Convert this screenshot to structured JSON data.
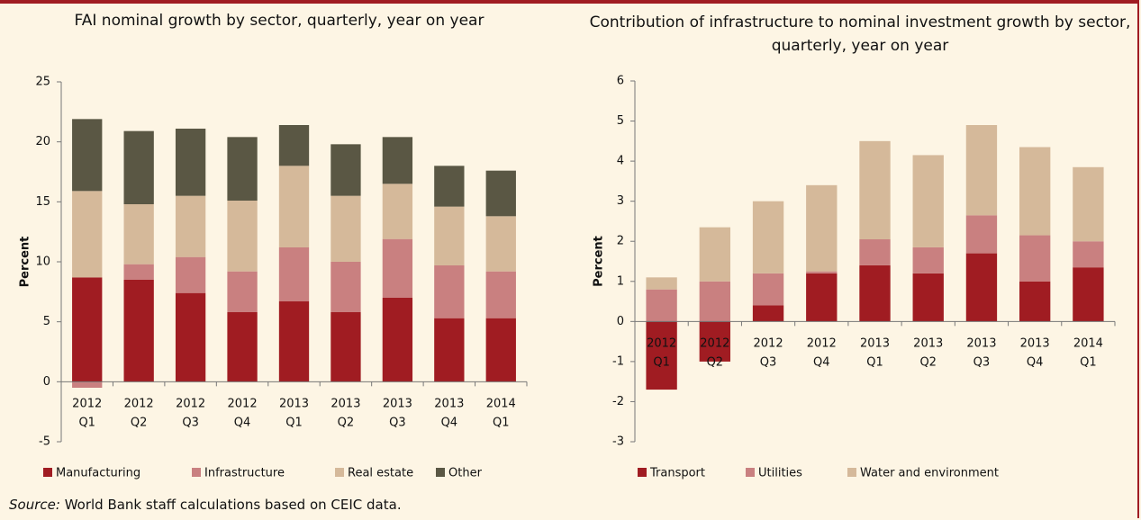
{
  "chart_data": [
    {
      "type": "bar",
      "stacked": true,
      "title": "FAI nominal growth by sector, quarterly, year on year",
      "ylabel": "Percent",
      "categories": [
        [
          "2012",
          "Q1"
        ],
        [
          "2012",
          "Q2"
        ],
        [
          "2012",
          "Q3"
        ],
        [
          "2012",
          "Q4"
        ],
        [
          "2013",
          "Q1"
        ],
        [
          "2013",
          "Q2"
        ],
        [
          "2013",
          "Q3"
        ],
        [
          "2013",
          "Q4"
        ],
        [
          "2014",
          "Q1"
        ]
      ],
      "series": [
        {
          "name": "Manufacturing",
          "color": "#a01c22",
          "values": [
            8.7,
            8.5,
            7.4,
            5.8,
            6.7,
            5.8,
            7.0,
            5.3,
            5.3
          ]
        },
        {
          "name": "Infrastructure",
          "color": "#c98080",
          "values": [
            -0.5,
            1.3,
            3.0,
            3.4,
            4.5,
            4.2,
            4.9,
            4.4,
            3.9
          ]
        },
        {
          "name": "Real estate",
          "color": "#d5b99a",
          "values": [
            7.2,
            5.0,
            5.1,
            5.9,
            6.8,
            5.5,
            4.6,
            4.9,
            4.6
          ]
        },
        {
          "name": "Other",
          "color": "#5a5744",
          "values": [
            6.0,
            6.1,
            5.6,
            5.3,
            3.4,
            4.3,
            3.9,
            3.4,
            3.8
          ]
        }
      ],
      "ylim": [
        -5,
        25
      ],
      "yticks": [
        -5,
        0,
        5,
        10,
        15,
        20,
        25
      ],
      "legend": "bottom"
    },
    {
      "type": "bar",
      "stacked": true,
      "title": "Contribution of infrastructure to nominal investment growth by sector, quarterly, year on year",
      "ylabel": "Percent",
      "categories": [
        [
          "2012",
          "Q1"
        ],
        [
          "2012",
          "Q2"
        ],
        [
          "2012",
          "Q3"
        ],
        [
          "2012",
          "Q4"
        ],
        [
          "2013",
          "Q1"
        ],
        [
          "2013",
          "Q2"
        ],
        [
          "2013",
          "Q3"
        ],
        [
          "2013",
          "Q4"
        ],
        [
          "2014",
          "Q1"
        ]
      ],
      "series": [
        {
          "name": "Transport",
          "color": "#a01c22",
          "values": [
            -1.7,
            -1.0,
            0.4,
            1.2,
            1.4,
            1.2,
            1.7,
            1.0,
            1.35
          ]
        },
        {
          "name": "Utilities",
          "color": "#c98080",
          "values": [
            0.8,
            1.0,
            0.8,
            0.05,
            0.65,
            0.65,
            0.95,
            1.15,
            0.65
          ]
        },
        {
          "name": "Water and environment",
          "color": "#d5b99a",
          "values": [
            0.3,
            1.35,
            1.8,
            2.15,
            2.45,
            2.3,
            2.25,
            2.2,
            1.85
          ]
        }
      ],
      "ylim": [
        -3,
        6
      ],
      "yticks": [
        -3,
        -2,
        -1,
        0,
        1,
        2,
        3,
        4,
        5,
        6
      ],
      "legend": "bottom"
    }
  ],
  "source": {
    "label": "Source:",
    "text": "World Bank staff calculations based on CEIC data."
  }
}
